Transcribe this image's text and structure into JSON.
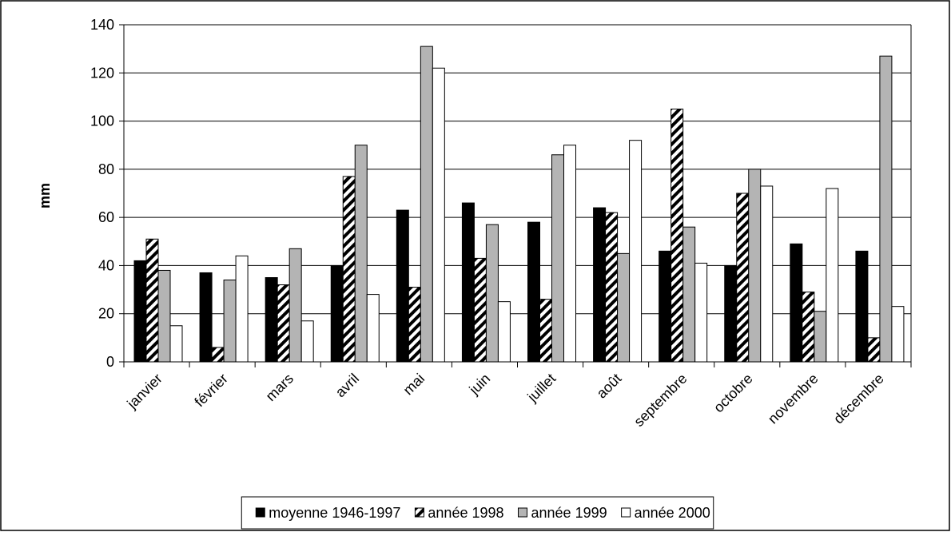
{
  "chart_data": {
    "type": "bar",
    "y_label": "mm",
    "categories": [
      "janvier",
      "février",
      "mars",
      "avril",
      "mai",
      "juin",
      "juillet",
      "août",
      "septembre",
      "octobre",
      "novembre",
      "décembre"
    ],
    "series": [
      {
        "name": "moyenne 1946-1997",
        "color": "#000000",
        "values": [
          42,
          37,
          35,
          40,
          63,
          66,
          58,
          64,
          46,
          40,
          49,
          46
        ]
      },
      {
        "name": "année 1998",
        "color": "#000000",
        "pattern": "diagonal",
        "values": [
          51,
          6,
          32,
          77,
          31,
          43,
          26,
          62,
          105,
          70,
          29,
          10
        ]
      },
      {
        "name": "année 1999",
        "color": "#b4b4b4",
        "values": [
          38,
          34,
          47,
          90,
          131,
          57,
          86,
          45,
          56,
          80,
          21,
          127
        ]
      },
      {
        "name": "année 2000",
        "color": "#ffffff",
        "values": [
          15,
          44,
          17,
          28,
          122,
          25,
          90,
          92,
          41,
          73,
          72,
          23
        ]
      }
    ],
    "ylim": [
      0,
      140
    ],
    "yticks": [
      0,
      20,
      40,
      60,
      80,
      100,
      120,
      140
    ],
    "grid": true,
    "legend": "bottom"
  }
}
